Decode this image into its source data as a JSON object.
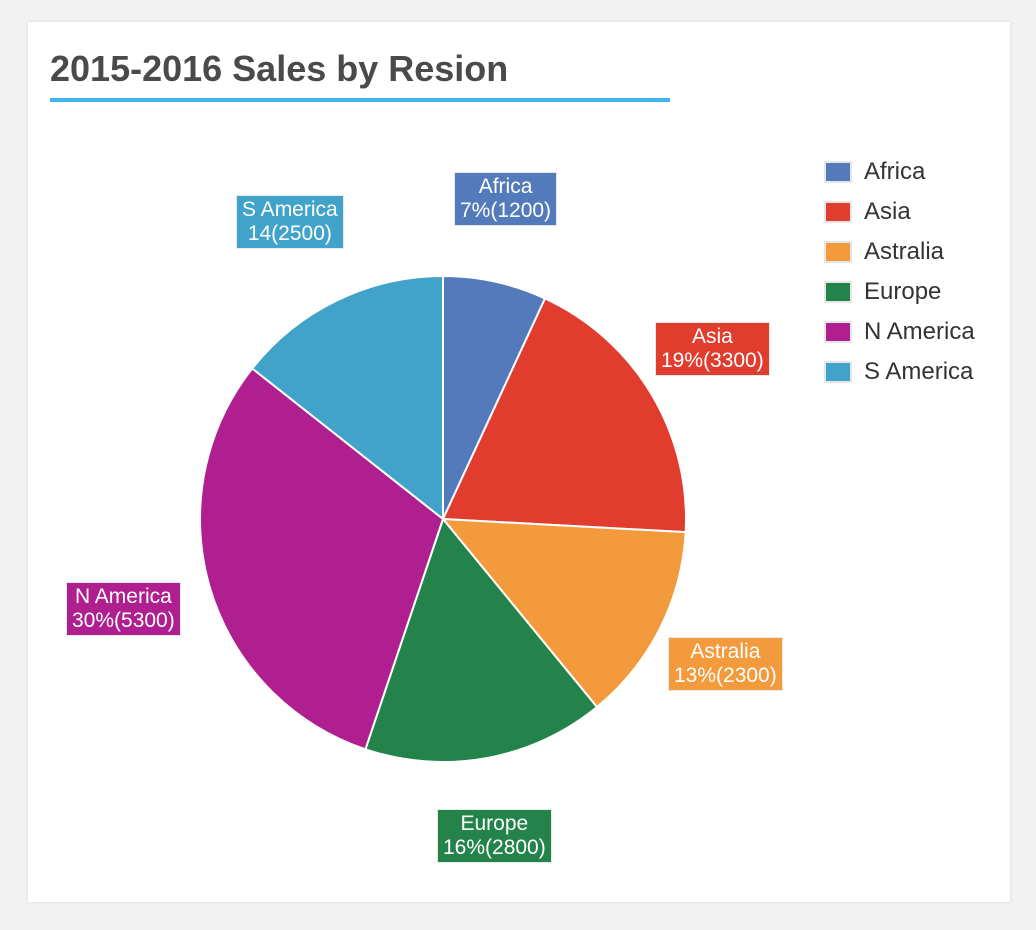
{
  "chart_data": {
    "type": "pie",
    "title": "2015-2016 Sales by Resion",
    "legend_position": "right",
    "slices": [
      {
        "name": "Africa",
        "value": 1200,
        "label_line1": "Africa",
        "label_line2": "7%(1200)",
        "color": "#537bbb"
      },
      {
        "name": "Asia",
        "value": 3300,
        "label_line1": "Asia",
        "label_line2": "19%(3300)",
        "color": "#e03d2e"
      },
      {
        "name": "Astralia",
        "value": 2300,
        "label_line1": "Astralia",
        "label_line2": "13%(2300)",
        "color": "#f39b3c"
      },
      {
        "name": "Europe",
        "value": 2800,
        "label_line1": "Europe",
        "label_line2": "16%(2800)",
        "color": "#23834a"
      },
      {
        "name": "N America",
        "value": 5300,
        "label_line1": "N America",
        "label_line2": "30%(5300)",
        "color": "#b01f8f"
      },
      {
        "name": "S America",
        "value": 2500,
        "label_line1": "S America",
        "label_line2": "14(2500)",
        "color": "#41a3c9"
      }
    ]
  }
}
